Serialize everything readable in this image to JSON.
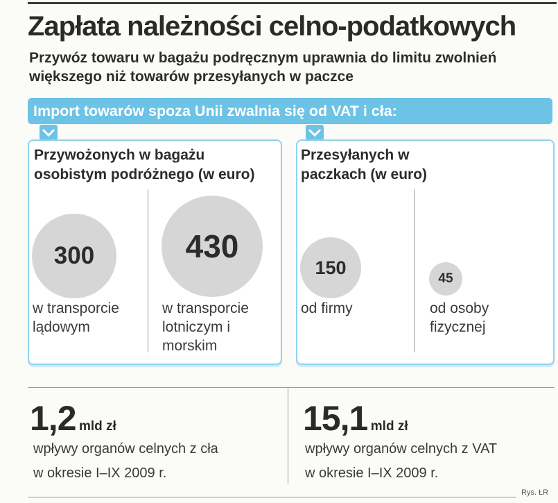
{
  "header": {
    "title": "Zapłata należności celno-podatkowych",
    "subtitle": "Przywóz towaru w bagażu podręcznym uprawnia do limitu zwolnień większego niż towarów przesyłanych w paczce"
  },
  "banner": {
    "text": "Import towarów spoza Unii zwalnia się od VAT i cła:"
  },
  "colors": {
    "accent": "#6cc3e6",
    "panel_border": "#8fd2ee",
    "circle": "#d6d6d6"
  },
  "panels": [
    {
      "title": "Przywożonych w bagażu osobistym podróżnego (w euro)",
      "items": [
        {
          "value": "300",
          "label": "w transporcie lądowym"
        },
        {
          "value": "430",
          "label": "w transporcie lotniczym i morskim"
        }
      ]
    },
    {
      "title": "Przesyłanych w paczkach (w euro)",
      "items": [
        {
          "value": "150",
          "label": "od firmy"
        },
        {
          "value": "45",
          "label": "od osoby fizycznej"
        }
      ]
    }
  ],
  "stats": [
    {
      "value": "1,2",
      "unit": "mld zł",
      "line1": "wpływy organów celnych z cła",
      "line2": "w okresie I–IX 2009 r."
    },
    {
      "value": "15,1",
      "unit": "mld zł",
      "line1": "wpływy organów celnych z VAT",
      "line2": "w okresie I–IX 2009 r."
    }
  ],
  "credit": "Rys. ŁR"
}
